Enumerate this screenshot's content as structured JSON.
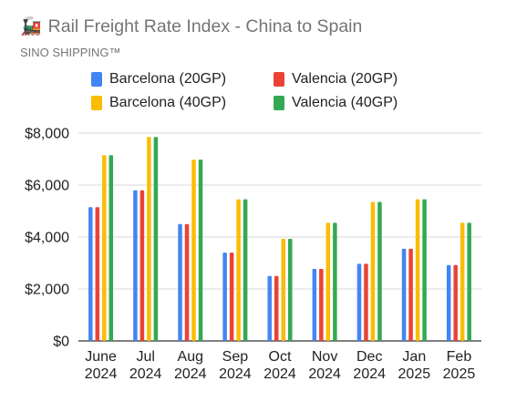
{
  "header": {
    "icon": "train-icon",
    "title": "Rail Freight Rate Index - China to Spain",
    "subtitle": "SINO SHIPPING™"
  },
  "chart_data": {
    "type": "bar",
    "title": "Rail Freight Rate Index - China to Spain",
    "xlabel": "",
    "ylabel": "",
    "ylim": [
      0,
      8000
    ],
    "yticks": [
      0,
      2000,
      4000,
      6000,
      8000
    ],
    "ytick_labels": [
      "$0",
      "$2,000",
      "$4,000",
      "$6,000",
      "$8,000"
    ],
    "grid": true,
    "legend_position": "top",
    "categories": [
      "June 2024",
      "Jul 2024",
      "Aug 2024",
      "Sep 2024",
      "Oct 2024",
      "Nov 2024",
      "Dec 2024",
      "Jan 2025",
      "Feb 2025"
    ],
    "category_labels": [
      [
        "June",
        "2024"
      ],
      [
        "Jul",
        "2024"
      ],
      [
        "Aug",
        "2024"
      ],
      [
        "Sep",
        "2024"
      ],
      [
        "Oct",
        "2024"
      ],
      [
        "Nov",
        "2024"
      ],
      [
        "Dec",
        "2024"
      ],
      [
        "Jan",
        "2025"
      ],
      [
        "Feb",
        "2025"
      ]
    ],
    "series": [
      {
        "name": "Barcelona (20GP)",
        "color": "#4285F4",
        "values": [
          5150,
          5800,
          4500,
          3400,
          2500,
          2770,
          2970,
          3550,
          2920
        ]
      },
      {
        "name": "Valencia (20GP)",
        "color": "#EA4335",
        "values": [
          5150,
          5800,
          4500,
          3400,
          2500,
          2770,
          2970,
          3550,
          2920
        ]
      },
      {
        "name": "Barcelona (40GP)",
        "color": "#FBBC04",
        "values": [
          7150,
          7850,
          6980,
          5450,
          3930,
          4550,
          5350,
          5450,
          4550
        ]
      },
      {
        "name": "Valencia (40GP)",
        "color": "#34A853",
        "values": [
          7150,
          7850,
          6980,
          5450,
          3930,
          4550,
          5350,
          5450,
          4550
        ]
      }
    ],
    "legend_order": [
      0,
      1,
      2,
      3
    ]
  }
}
